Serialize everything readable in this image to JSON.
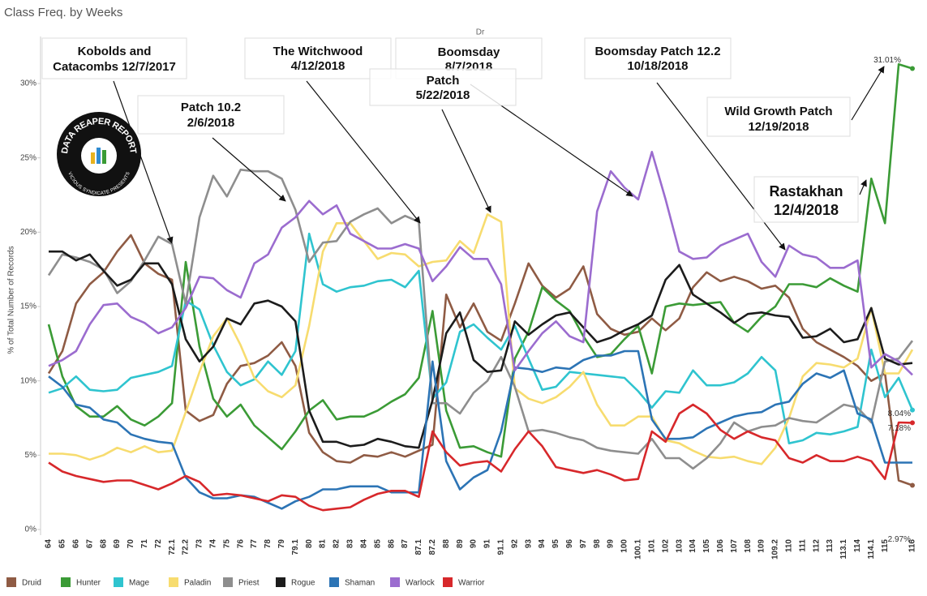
{
  "chart_data": {
    "type": "line",
    "title": "Class Freq. by Weeks",
    "top_label": "Dr",
    "y_label": "% of Total Number of Records",
    "categories": [
      "64",
      "65",
      "66",
      "67",
      "68",
      "69",
      "70",
      "71",
      "72",
      "72.1",
      "72.2",
      "73",
      "74",
      "75",
      "76",
      "77",
      "78",
      "79",
      "79.1",
      "80",
      "81",
      "82",
      "83",
      "84",
      "85",
      "86",
      "87",
      "87.1",
      "87.2",
      "88",
      "89",
      "90",
      "91",
      "91.1",
      "92",
      "93",
      "94",
      "95",
      "96",
      "97",
      "98",
      "99",
      "100",
      "100.1",
      "101",
      "102",
      "103",
      "104",
      "105",
      "106",
      "107",
      "108",
      "109",
      "109.2",
      "110",
      "111",
      "112",
      "113",
      "113.1",
      "114",
      "114.1",
      "115",
      null,
      "116"
    ],
    "ylim": [
      0,
      33
    ],
    "yticks": [
      {
        "value": 0,
        "label": "0%"
      },
      {
        "value": 5,
        "label": "5%"
      },
      {
        "value": 10,
        "label": "10%"
      },
      {
        "value": 15,
        "label": "15%"
      },
      {
        "value": 20,
        "label": "20%"
      },
      {
        "value": 25,
        "label": "25%"
      },
      {
        "value": 30,
        "label": "30%"
      }
    ],
    "grid": false,
    "legend": "bottom",
    "series": [
      {
        "name": "Druid",
        "color": "#8f5b44",
        "values": [
          10.5,
          12,
          15.2,
          16.5,
          17.3,
          18.7,
          19.8,
          17.9,
          17.2,
          16.8,
          8.0,
          7.3,
          7.7,
          9.8,
          11.0,
          11.2,
          11.7,
          12.6,
          11.0,
          6.5,
          5.2,
          4.6,
          4.5,
          5.0,
          4.9,
          5.2,
          4.9,
          5.3,
          5.7,
          15.8,
          13.6,
          15.2,
          13.3,
          12.7,
          15.2,
          17.9,
          16.4,
          15.6,
          16.2,
          17.7,
          14.5,
          13.5,
          13.1,
          13.3,
          14.2,
          13.4,
          14.2,
          16.3,
          17.3,
          16.7,
          17.0,
          16.7,
          16.2,
          16.4,
          15.6,
          13.5,
          12.6,
          12.1,
          11.6,
          11.0,
          10.0,
          10.5,
          3.3,
          2.97
        ],
        "value_labels": [
          null,
          null,
          null,
          null,
          null,
          null,
          null,
          null,
          null,
          null,
          null,
          null,
          null,
          null,
          null,
          null,
          null,
          null,
          null,
          null,
          null,
          null,
          null,
          null,
          null,
          null,
          null,
          null,
          null,
          null,
          null,
          null,
          null,
          null,
          null,
          null,
          null,
          null,
          null,
          null,
          null,
          null,
          null,
          null,
          null,
          null,
          null,
          null,
          null,
          null,
          null,
          null,
          null,
          null,
          null,
          null,
          null,
          null,
          null,
          null,
          null,
          null,
          null,
          "2.97%"
        ]
      },
      {
        "name": "Hunter",
        "color": "#3b9b36",
        "values": [
          13.8,
          10.3,
          8.3,
          7.6,
          7.6,
          8.3,
          7.4,
          7.0,
          7.6,
          8.5,
          18.0,
          12.3,
          8.8,
          7.6,
          8.4,
          7.0,
          6.2,
          5.4,
          6.6,
          8.0,
          8.7,
          7.4,
          7.6,
          7.6,
          8.0,
          8.6,
          9.1,
          10.2,
          14.7,
          8.0,
          5.5,
          5.6,
          5.2,
          4.9,
          11.5,
          13.3,
          16.3,
          15.4,
          14.7,
          13.0,
          11.6,
          11.8,
          12.8,
          13.7,
          10.5,
          15.0,
          15.2,
          15.1,
          15.2,
          15.3,
          13.9,
          13.3,
          14.3,
          15.0,
          16.5,
          16.5,
          16.3,
          16.9,
          16.4,
          16.0,
          23.6,
          20.6,
          31.3,
          31.01
        ],
        "value_labels": [
          null,
          null,
          null,
          null,
          null,
          null,
          null,
          null,
          null,
          null,
          null,
          null,
          null,
          null,
          null,
          null,
          null,
          null,
          null,
          null,
          null,
          null,
          null,
          null,
          null,
          null,
          null,
          null,
          null,
          null,
          null,
          null,
          null,
          null,
          null,
          null,
          null,
          null,
          null,
          null,
          null,
          null,
          null,
          null,
          null,
          null,
          null,
          null,
          null,
          null,
          null,
          null,
          null,
          null,
          null,
          null,
          null,
          null,
          null,
          null,
          null,
          null,
          null,
          "31.01%"
        ]
      },
      {
        "name": "Mage",
        "color": "#2fc4cf",
        "values": [
          9.2,
          9.5,
          10.3,
          9.4,
          9.3,
          9.4,
          10.2,
          10.4,
          10.6,
          11.0,
          15.4,
          14.8,
          12.4,
          10.6,
          9.7,
          10.1,
          11.3,
          10.4,
          12.0,
          19.9,
          16.5,
          16.0,
          16.3,
          16.4,
          16.7,
          16.8,
          16.3,
          17.4,
          8.8,
          9.9,
          13.3,
          13.8,
          12.9,
          12.1,
          13.7,
          11.5,
          9.4,
          9.6,
          10.6,
          10.5,
          10.4,
          10.3,
          10.2,
          9.3,
          8.2,
          9.3,
          9.2,
          10.7,
          9.7,
          9.7,
          9.9,
          10.5,
          11.6,
          10.7,
          5.8,
          6.0,
          6.5,
          6.4,
          6.6,
          6.9,
          12.1,
          8.9,
          10.2,
          8.04
        ],
        "value_labels": [
          null,
          null,
          null,
          null,
          null,
          null,
          null,
          null,
          null,
          null,
          null,
          null,
          null,
          null,
          null,
          null,
          null,
          null,
          null,
          null,
          null,
          null,
          null,
          null,
          null,
          null,
          null,
          null,
          null,
          null,
          null,
          null,
          null,
          null,
          null,
          null,
          null,
          null,
          null,
          null,
          null,
          null,
          null,
          null,
          null,
          null,
          null,
          null,
          null,
          null,
          null,
          null,
          null,
          null,
          null,
          null,
          null,
          null,
          null,
          null,
          null,
          null,
          null,
          "8.04%"
        ]
      },
      {
        "name": "Paladin",
        "color": "#f7dc6f",
        "values": [
          5.1,
          5.1,
          5.0,
          4.7,
          5.0,
          5.5,
          5.2,
          5.6,
          5.2,
          5.3,
          7.9,
          10.6,
          13.0,
          14.2,
          12.4,
          10.2,
          9.3,
          8.9,
          9.7,
          13.7,
          18.7,
          20.6,
          20.6,
          19.4,
          18.2,
          18.6,
          18.5,
          17.7,
          18.0,
          18.1,
          19.4,
          18.6,
          21.2,
          20.7,
          9.5,
          8.8,
          8.5,
          8.9,
          9.6,
          10.6,
          8.4,
          7.0,
          7.0,
          7.6,
          7.6,
          6.0,
          5.8,
          5.3,
          4.9,
          4.8,
          4.9,
          4.6,
          4.4,
          5.5,
          7.5,
          10.3,
          11.2,
          11.1,
          10.9,
          11.5,
          14.9,
          10.5,
          10.5,
          12.1
        ]
      },
      {
        "name": "Priest",
        "color": "#8e8e8e",
        "values": [
          17.1,
          18.5,
          18.3,
          18.0,
          17.5,
          15.9,
          16.7,
          18.1,
          19.7,
          19.2,
          15.2,
          21.0,
          23.8,
          22.4,
          24.2,
          24.1,
          24.1,
          23.6,
          21.5,
          18.0,
          19.3,
          19.4,
          20.7,
          21.2,
          21.6,
          20.6,
          21.1,
          20.7,
          8.5,
          8.5,
          7.8,
          9.2,
          10.0,
          11.6,
          9.6,
          6.6,
          6.7,
          6.5,
          6.2,
          6.0,
          5.5,
          5.3,
          5.2,
          5.1,
          6.1,
          4.8,
          4.8,
          4.1,
          4.8,
          5.8,
          7.2,
          6.6,
          6.9,
          7.0,
          7.5,
          7.3,
          7.2,
          7.8,
          8.4,
          8.2,
          7.2,
          11.3,
          11.5,
          12.7
        ]
      },
      {
        "name": "Rogue",
        "color": "#1c1c1c",
        "values": [
          18.7,
          18.7,
          18.1,
          18.5,
          17.4,
          16.4,
          16.8,
          17.9,
          17.9,
          16.5,
          12.8,
          11.3,
          12.3,
          14.2,
          13.8,
          15.2,
          15.4,
          15.0,
          14.0,
          8.0,
          5.9,
          5.9,
          5.6,
          5.7,
          6.1,
          5.9,
          5.6,
          5.5,
          8.7,
          13.2,
          14.6,
          11.4,
          10.6,
          10.7,
          14.0,
          13.1,
          13.8,
          14.4,
          14.6,
          13.6,
          12.6,
          12.9,
          13.4,
          13.8,
          14.4,
          16.8,
          17.8,
          15.8,
          15.2,
          14.6,
          13.9,
          14.5,
          14.6,
          14.4,
          14.3,
          12.9,
          13.0,
          13.5,
          12.6,
          12.8,
          14.9,
          11.5,
          11.1,
          11.2
        ]
      },
      {
        "name": "Shaman",
        "color": "#2c74b5",
        "values": [
          10.3,
          9.6,
          8.4,
          8.2,
          7.4,
          7.2,
          6.4,
          6.1,
          5.9,
          5.8,
          3.5,
          2.5,
          2.1,
          2.1,
          2.3,
          2.2,
          1.8,
          1.4,
          1.9,
          2.2,
          2.7,
          2.7,
          2.9,
          2.9,
          2.9,
          2.5,
          2.5,
          2.5,
          11.3,
          4.6,
          2.7,
          3.5,
          4.0,
          6.6,
          10.9,
          10.8,
          10.6,
          10.9,
          10.8,
          11.4,
          11.7,
          11.7,
          12.0,
          12.0,
          7.4,
          6.1,
          6.1,
          6.2,
          6.8,
          7.2,
          7.6,
          7.8,
          7.9,
          8.4,
          8.6,
          9.8,
          10.5,
          10.2,
          10.7,
          7.8,
          7.4,
          4.5,
          4.5,
          4.5
        ]
      },
      {
        "name": "Warlock",
        "color": "#9b6ccf",
        "values": [
          11.0,
          11.4,
          12.0,
          13.8,
          15.1,
          15.2,
          14.3,
          13.9,
          13.2,
          13.6,
          14.9,
          17.0,
          16.9,
          16.1,
          15.6,
          17.9,
          18.5,
          20.3,
          21.0,
          22.1,
          21.2,
          21.8,
          19.9,
          19.4,
          18.9,
          18.9,
          19.2,
          18.9,
          16.7,
          17.7,
          19.0,
          18.2,
          18.2,
          16.5,
          10.7,
          12.0,
          13.2,
          14.0,
          13.0,
          12.6,
          21.4,
          24.1,
          23.0,
          22.2,
          25.4,
          22.2,
          18.7,
          18.2,
          18.3,
          19.1,
          19.5,
          19.9,
          18.0,
          17.0,
          19.1,
          18.5,
          18.3,
          17.6,
          17.6,
          18.1,
          10.9,
          11.8,
          11.3,
          10.4
        ]
      },
      {
        "name": "Warrior",
        "color": "#d7282b",
        "values": [
          4.5,
          3.9,
          3.6,
          3.4,
          3.2,
          3.3,
          3.3,
          3.0,
          2.7,
          3.1,
          3.6,
          3.2,
          2.3,
          2.4,
          2.3,
          2.1,
          1.9,
          2.3,
          2.2,
          1.6,
          1.3,
          1.4,
          1.5,
          2.0,
          2.4,
          2.6,
          2.6,
          2.2,
          6.6,
          5.2,
          4.3,
          4.5,
          4.6,
          3.9,
          5.4,
          6.6,
          5.6,
          4.2,
          4.0,
          3.8,
          4.0,
          3.7,
          3.3,
          3.4,
          6.6,
          5.9,
          7.8,
          8.4,
          7.8,
          6.7,
          6.1,
          6.6,
          6.2,
          6.0,
          4.8,
          4.5,
          5.0,
          4.6,
          4.6,
          4.9,
          4.6,
          3.4,
          7.2,
          7.18
        ],
        "value_labels": [
          null,
          null,
          null,
          null,
          null,
          null,
          null,
          null,
          null,
          null,
          null,
          null,
          null,
          null,
          null,
          null,
          null,
          null,
          null,
          null,
          null,
          null,
          null,
          null,
          null,
          null,
          null,
          null,
          null,
          null,
          null,
          null,
          null,
          null,
          null,
          null,
          null,
          null,
          null,
          null,
          null,
          null,
          null,
          null,
          null,
          null,
          null,
          null,
          null,
          null,
          null,
          null,
          null,
          null,
          null,
          null,
          null,
          null,
          null,
          null,
          null,
          null,
          null,
          "7.18%"
        ]
      }
    ],
    "annotations": [
      {
        "lines": [
          "Kobolds and",
          "Catacombs 12/7/2017"
        ]
      },
      {
        "lines": [
          "Patch 10.2",
          "2/6/2018"
        ]
      },
      {
        "lines": [
          "The Witchwood",
          "4/12/2018"
        ]
      },
      {
        "lines": [
          "Boomsday",
          "8/7/2018"
        ]
      },
      {
        "lines": [
          "Patch",
          "5/22/2018"
        ]
      },
      {
        "lines": [
          "Boomsday Patch 12.2",
          "10/18/2018"
        ]
      },
      {
        "lines": [
          "Wild Growth Patch",
          "12/19/2018"
        ]
      },
      {
        "lines": [
          "Rastakhan",
          "12/4/2018"
        ]
      }
    ],
    "logo": {
      "title": "DATA REAPER REPORT",
      "subtitle": "VICIOUS SYNDICATE PRESENTS"
    }
  }
}
